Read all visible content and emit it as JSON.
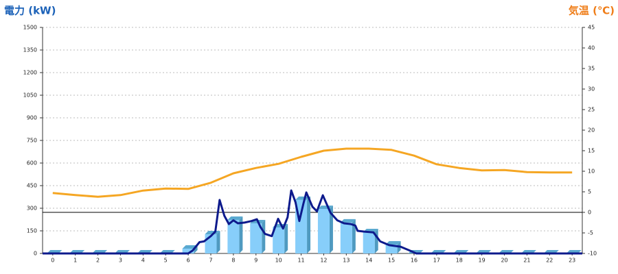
{
  "chart_data": {
    "type": "combo",
    "title": "電力 (kW)",
    "y2_title": "気温 (℃)",
    "x": [
      0,
      1,
      2,
      3,
      4,
      5,
      6,
      7,
      8,
      9,
      10,
      11,
      12,
      13,
      14,
      15,
      16,
      17,
      18,
      19,
      20,
      21,
      22,
      23
    ],
    "xlim": [
      -0.45,
      23.45
    ],
    "xticks": [
      0,
      1,
      2,
      3,
      4,
      5,
      6,
      7,
      8,
      9,
      10,
      11,
      12,
      13,
      14,
      15,
      16,
      17,
      18,
      19,
      20,
      21,
      22,
      23
    ],
    "ylim": [
      0,
      1500
    ],
    "yticks": [
      0,
      150,
      300,
      450,
      600,
      750,
      900,
      1050,
      1200,
      1350,
      1500
    ],
    "y2lim": [
      -10,
      45
    ],
    "y2ticks": [
      -10,
      -5,
      0,
      5,
      10,
      15,
      20,
      25,
      30,
      35,
      40,
      45
    ],
    "grid": true,
    "series": [
      {
        "type": "bar",
        "color": "#87cefa",
        "values": [
          0,
          0,
          0,
          0,
          0,
          0,
          32,
          127,
          223,
          200,
          173,
          355,
          295,
          205,
          141,
          59,
          0,
          0,
          0,
          0,
          0,
          0,
          0,
          0
        ]
      },
      {
        "type": "line",
        "color": "#0d1a8c",
        "x": [
          -0.45,
          6.0,
          6.2,
          6.5,
          6.7,
          7.0,
          7.2,
          7.39,
          7.6,
          7.8,
          8.0,
          8.2,
          8.5,
          8.8,
          9.04,
          9.2,
          9.4,
          9.7,
          9.98,
          10.2,
          10.4,
          10.56,
          10.75,
          10.92,
          11.1,
          11.23,
          11.5,
          11.7,
          11.96,
          12.3,
          12.6,
          12.9,
          13.2,
          13.4,
          13.5,
          13.8,
          14.2,
          14.5,
          14.9,
          15.4,
          15.8,
          16.1,
          23.45
        ],
        "values": [
          0,
          0,
          20,
          75,
          80,
          115,
          145,
          355,
          250,
          195,
          220,
          200,
          205,
          215,
          227,
          175,
          130,
          115,
          230,
          165,
          240,
          418,
          340,
          215,
          330,
          405,
          310,
          280,
          386,
          270,
          220,
          200,
          195,
          185,
          150,
          145,
          140,
          80,
          55,
          45,
          20,
          0,
          0
        ]
      },
      {
        "type": "line",
        "axis": "y2",
        "color": "#f5a623",
        "values": [
          4.7,
          4.2,
          3.8,
          4.2,
          5.3,
          5.8,
          5.7,
          7.2,
          9.5,
          10.8,
          11.8,
          13.5,
          15,
          15.5,
          15.5,
          15.2,
          13.8,
          11.7,
          10.8,
          10.2,
          10.3,
          9.8,
          9.7,
          9.7
        ]
      }
    ]
  }
}
